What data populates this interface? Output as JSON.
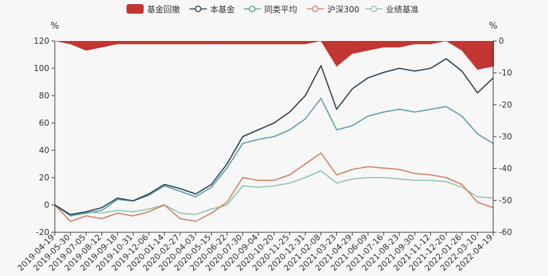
{
  "chart_data": {
    "type": "line",
    "title": "",
    "left_axis_unit": "%",
    "right_axis_unit": "%",
    "left_ylim": [
      -20,
      120
    ],
    "left_yticks": [
      -20,
      0,
      20,
      40,
      60,
      80,
      100,
      120
    ],
    "right_ylim": [
      -60,
      0
    ],
    "right_yticks": [
      -60,
      -50,
      -40,
      -30,
      -20,
      -10,
      0
    ],
    "grid": false,
    "legend_position": "top-center",
    "x": [
      "2019-04-19",
      "2019-05-30",
      "2019-07-05",
      "2019-08-12",
      "2019-09-18",
      "2019-10-31",
      "2019-12-06",
      "2020-01-14",
      "2020-02-27",
      "2020-04-03",
      "2020-05-15",
      "2020-06-22",
      "2020-07-30",
      "2020-09-04",
      "2020-10-20",
      "2020-11-25",
      "2020-12-31",
      "2021-02-08",
      "2021-03-23",
      "2021-04-29",
      "2021-06-09",
      "2021-07-16",
      "2021-08-23",
      "2021-09-30",
      "2021-11-12",
      "2021-12-20",
      "2022-01-26",
      "2022-03-10",
      "2022-04-19"
    ],
    "series": [
      {
        "name": "基金回撤",
        "kind": "bar",
        "axis": "right",
        "color": "#c23531",
        "values": [
          0,
          -1,
          -3,
          -2,
          -1,
          -1,
          -1,
          -1,
          -1,
          -1,
          -1,
          -1,
          -1,
          -1,
          -1,
          -1,
          -1,
          0,
          -8,
          -4,
          -3,
          -2,
          -2,
          -1,
          -1,
          0,
          -3,
          -9,
          -8
        ]
      },
      {
        "name": "本基金",
        "kind": "line",
        "axis": "left",
        "color": "#2f4554",
        "values": [
          0,
          -7,
          -5,
          -2,
          5,
          3,
          8,
          15,
          12,
          8,
          15,
          30,
          50,
          55,
          60,
          68,
          80,
          102,
          70,
          85,
          93,
          97,
          100,
          98,
          100,
          107,
          98,
          82,
          93
        ]
      },
      {
        "name": "同类平均",
        "kind": "line",
        "axis": "left",
        "color": "#61a0a8",
        "values": [
          0,
          -8,
          -6,
          -4,
          4,
          3,
          7,
          14,
          10,
          6,
          13,
          27,
          45,
          48,
          50,
          55,
          63,
          78,
          55,
          58,
          65,
          68,
          70,
          68,
          70,
          72,
          65,
          52,
          45
        ]
      },
      {
        "name": "沪深300",
        "kind": "line",
        "axis": "left",
        "color": "#d48265",
        "values": [
          0,
          -12,
          -8,
          -10,
          -6,
          -8,
          -5,
          0,
          -10,
          -12,
          -6,
          2,
          20,
          18,
          18,
          22,
          30,
          38,
          22,
          26,
          28,
          27,
          26,
          23,
          22,
          20,
          15,
          2,
          -2
        ]
      },
      {
        "name": "业绩基准",
        "kind": "line",
        "axis": "left",
        "color": "#91c7ae",
        "values": [
          0,
          -8,
          -5,
          -6,
          -4,
          -5,
          -3,
          0,
          -6,
          -7,
          -3,
          0,
          14,
          13,
          14,
          16,
          20,
          25,
          16,
          19,
          20,
          20,
          19,
          18,
          18,
          17,
          13,
          6,
          5
        ]
      }
    ]
  }
}
